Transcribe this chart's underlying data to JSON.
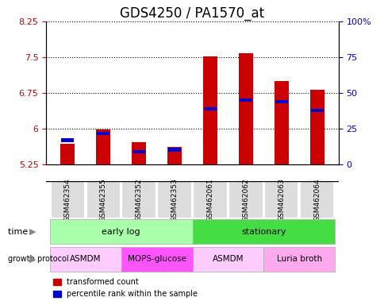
{
  "title": "GDS4250 / PA1570_at",
  "samples": [
    "GSM462354",
    "GSM462355",
    "GSM462352",
    "GSM462353",
    "GSM462061",
    "GSM462062",
    "GSM462063",
    "GSM462064"
  ],
  "red_values": [
    5.68,
    5.98,
    5.72,
    5.62,
    7.52,
    7.58,
    7.0,
    6.82
  ],
  "blue_values": [
    5.76,
    5.9,
    5.52,
    5.56,
    6.42,
    6.6,
    6.56,
    6.38
  ],
  "ymin": 5.25,
  "ymax": 8.25,
  "yticks": [
    5.25,
    6.0,
    6.75,
    7.5,
    8.25
  ],
  "ytick_labels": [
    "5.25",
    "6",
    "6.75",
    "7.5",
    "8.25"
  ],
  "y2ticks": [
    0,
    25,
    50,
    75,
    100
  ],
  "y2tick_labels": [
    "0",
    "25",
    "50",
    "75",
    "100%"
  ],
  "bar_base": 5.25,
  "bar_width": 0.4,
  "red_color": "#cc0000",
  "blue_color": "#0000cc",
  "time_groups": [
    {
      "label": "early log",
      "start": 0,
      "end": 4,
      "color": "#aaffaa"
    },
    {
      "label": "stationary",
      "start": 4,
      "end": 8,
      "color": "#44dd44"
    }
  ],
  "protocol_groups": [
    {
      "label": "ASMDM",
      "start": 0,
      "end": 2,
      "color": "#ffaaff"
    },
    {
      "label": "MOPS-glucose",
      "start": 2,
      "end": 4,
      "color": "#ff44ff"
    },
    {
      "label": "ASMDM",
      "start": 4,
      "end": 6,
      "color": "#ffaaff"
    },
    {
      "label": "Luria broth",
      "start": 6,
      "end": 8,
      "color": "#ff44ff"
    }
  ],
  "legend_items": [
    {
      "label": "transformed count",
      "color": "#cc0000"
    },
    {
      "label": "percentile rank within the sample",
      "color": "#0000cc"
    }
  ],
  "time_label": "time",
  "protocol_label": "growth protocol",
  "title_fontsize": 12,
  "axis_label_color_left": "#cc0000",
  "axis_label_color_right": "#0000bb",
  "grid_style": "dotted"
}
